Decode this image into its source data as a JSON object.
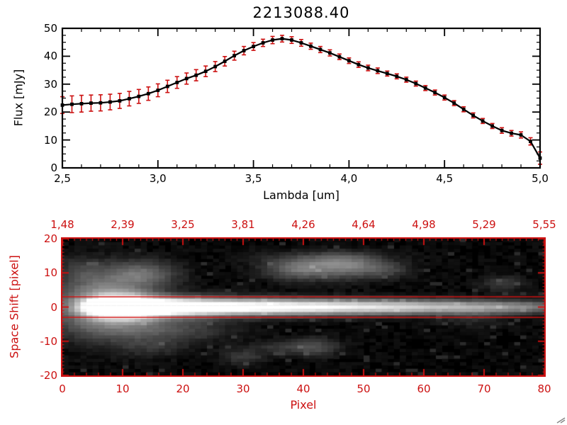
{
  "window": {
    "background": "#ffffff",
    "accent_red": "#cc1111"
  },
  "chart_data": [
    {
      "type": "line",
      "title": "2213088.40",
      "xlabel": "Lambda [um]",
      "ylabel": "Flux [mJy]",
      "xlim": [
        2.5,
        5.0
      ],
      "ylim": [
        0,
        50
      ],
      "xtick_values": [
        2.5,
        3.0,
        3.5,
        4.0,
        4.5,
        5.0
      ],
      "xtick_labels": [
        "2,5",
        "3,0",
        "3,5",
        "4,0",
        "4,5",
        "5,0"
      ],
      "ytick_values": [
        0,
        10,
        20,
        30,
        40,
        50
      ],
      "ytick_labels": [
        "0",
        "10",
        "20",
        "30",
        "40",
        "50"
      ],
      "line_color": "#000000",
      "marker": "square",
      "error_color": "#cc1111",
      "grid": false,
      "x": [
        2.5,
        2.55,
        2.6,
        2.65,
        2.7,
        2.75,
        2.8,
        2.85,
        2.9,
        2.95,
        3.0,
        3.05,
        3.1,
        3.15,
        3.2,
        3.25,
        3.3,
        3.35,
        3.4,
        3.45,
        3.5,
        3.55,
        3.6,
        3.65,
        3.7,
        3.75,
        3.8,
        3.85,
        3.9,
        3.95,
        4.0,
        4.05,
        4.1,
        4.15,
        4.2,
        4.25,
        4.3,
        4.35,
        4.4,
        4.45,
        4.5,
        4.55,
        4.6,
        4.65,
        4.7,
        4.75,
        4.8,
        4.85,
        4.9,
        4.95,
        5.0
      ],
      "y": [
        22.5,
        22.8,
        23.0,
        23.2,
        23.3,
        23.6,
        24.0,
        24.8,
        25.6,
        26.6,
        27.8,
        29.2,
        30.6,
        32.0,
        33.2,
        34.6,
        36.3,
        38.2,
        40.2,
        42.0,
        43.5,
        44.8,
        45.8,
        46.3,
        45.8,
        44.8,
        43.6,
        42.4,
        41.2,
        39.8,
        38.4,
        37.0,
        35.8,
        34.8,
        33.8,
        32.8,
        31.6,
        30.2,
        28.6,
        27.0,
        25.2,
        23.2,
        21.0,
        18.8,
        16.8,
        15.0,
        13.4,
        12.4,
        11.8,
        9.5,
        3.5
      ],
      "yerr": [
        3.0,
        3.0,
        3.0,
        2.9,
        2.9,
        2.8,
        2.7,
        2.6,
        2.5,
        2.4,
        2.3,
        2.2,
        2.1,
        2.0,
        2.0,
        1.9,
        1.8,
        1.7,
        1.6,
        1.5,
        1.4,
        1.3,
        1.3,
        1.2,
        1.2,
        1.2,
        1.1,
        1.1,
        1.1,
        1.0,
        1.0,
        1.0,
        1.0,
        1.0,
        0.9,
        0.9,
        0.9,
        0.9,
        0.9,
        0.9,
        0.9,
        0.9,
        0.9,
        0.9,
        0.9,
        0.9,
        1.0,
        1.0,
        1.1,
        1.3,
        2.2
      ]
    },
    {
      "type": "heatmap",
      "xlabel": "Pixel",
      "ylabel": "Space Shift [pixel]",
      "xlim": [
        0,
        80
      ],
      "ylim": [
        -20,
        20
      ],
      "xtick_values": [
        0,
        10,
        20,
        30,
        40,
        50,
        60,
        70,
        80
      ],
      "xtick_labels": [
        "0",
        "10",
        "20",
        "30",
        "40",
        "50",
        "60",
        "70",
        "80"
      ],
      "ytick_values": [
        -20,
        -10,
        0,
        10,
        20
      ],
      "ytick_labels": [
        "-20",
        "-10",
        "0",
        "10",
        "20"
      ],
      "top_axis_labels": [
        "1,48",
        "2,39",
        "3,25",
        "3,81",
        "4,26",
        "4,64",
        "4,98",
        "5,29",
        "5,55"
      ],
      "axis_color": "#cc1111",
      "aperture_lines": [
        3,
        -3
      ],
      "colormap": "gray",
      "description": "Bright horizontal spectral trace centered at space shift 0, brightest near pixel 8-15, fading toward pixel 80, with faint diffuse blobs",
      "blobs": [
        [
          9,
          0,
          1.3,
          2.5,
          1.6
        ],
        [
          10,
          0,
          1.05,
          4,
          2.1
        ],
        [
          16,
          0,
          0.8,
          7,
          1.9
        ],
        [
          26,
          0,
          0.6,
          10,
          1.8
        ],
        [
          38,
          0,
          0.5,
          12,
          1.6
        ],
        [
          50,
          0,
          0.42,
          12,
          1.5
        ],
        [
          62,
          0,
          0.3,
          10,
          1.4
        ],
        [
          72,
          0,
          0.22,
          7,
          1.3
        ],
        [
          79,
          0,
          0.16,
          5,
          1.2
        ],
        [
          8,
          0,
          0.22,
          6,
          7
        ],
        [
          7,
          3,
          0.3,
          5,
          4
        ],
        [
          13,
          10,
          0.3,
          4,
          2.6
        ],
        [
          9,
          -5,
          0.22,
          7,
          3.2
        ],
        [
          20,
          -7,
          0.14,
          6,
          2.4
        ],
        [
          3,
          11,
          0.12,
          3,
          3
        ],
        [
          39,
          11,
          0.3,
          3.5,
          2
        ],
        [
          47,
          12,
          0.34,
          4,
          2.4
        ],
        [
          43,
          14,
          0.18,
          7,
          1.8
        ],
        [
          54,
          11,
          0.14,
          3,
          1.6
        ],
        [
          30,
          -15,
          0.15,
          2.5,
          1.6
        ],
        [
          42,
          -12,
          0.22,
          2.6,
          1.9
        ],
        [
          36,
          -12,
          0.12,
          3,
          1.5
        ],
        [
          15,
          -12,
          0.1,
          4,
          2
        ],
        [
          73,
          7,
          0.14,
          2.5,
          1.6
        ],
        [
          68,
          -3,
          0.1,
          4,
          2
        ]
      ]
    }
  ]
}
